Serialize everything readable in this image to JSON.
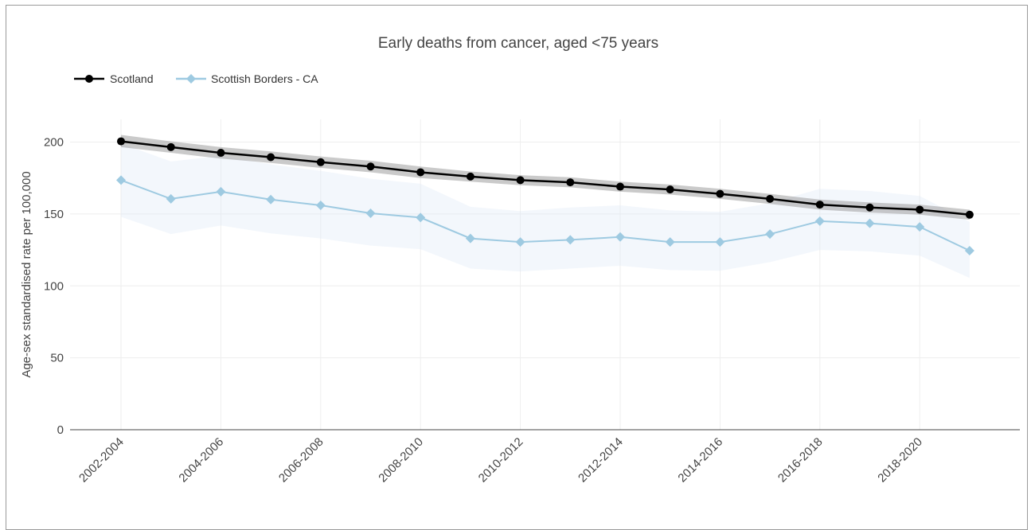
{
  "chart_data": {
    "type": "line",
    "title": "Early deaths from cancer, aged <75 years",
    "xlabel": "",
    "ylabel": "Age-sex standardised rate per 100,000",
    "ylim": [
      0,
      215
    ],
    "yticks": [
      0,
      50,
      100,
      150,
      200
    ],
    "categories": [
      "2002-2004",
      "2003-2005",
      "2004-2006",
      "2005-2007",
      "2006-2008",
      "2007-2009",
      "2008-2010",
      "2009-2011",
      "2010-2012",
      "2011-2013",
      "2012-2014",
      "2013-2015",
      "2014-2016",
      "2015-2017",
      "2016-2018",
      "2017-2019",
      "2018-2020",
      "2019-2021"
    ],
    "tick_labels": [
      "2002-2004",
      "2004-2006",
      "2006-2008",
      "2008-2010",
      "2010-2012",
      "2012-2014",
      "2014-2016",
      "2016-2018",
      "2018-2020"
    ],
    "legend_position": "top-left",
    "grid": true,
    "series": [
      {
        "name": "Scotland",
        "color": "#000000",
        "marker": "circle",
        "band_color": "#9e9e9e",
        "values": [
          200.5,
          196.5,
          192.5,
          189.5,
          186.0,
          183.0,
          179.0,
          176.0,
          173.5,
          172.0,
          169.0,
          167.0,
          164.0,
          160.5,
          156.5,
          154.5,
          153.0,
          149.5
        ],
        "lower": [
          196.5,
          192.5,
          188.5,
          185.5,
          182.0,
          179.0,
          175.0,
          172.5,
          170.0,
          168.5,
          165.5,
          163.5,
          160.5,
          157.0,
          153.0,
          151.0,
          149.5,
          146.0
        ],
        "upper": [
          205.0,
          200.5,
          196.5,
          193.5,
          190.0,
          187.0,
          183.0,
          179.5,
          177.0,
          175.5,
          172.5,
          170.5,
          167.5,
          164.0,
          160.0,
          158.0,
          156.5,
          153.0
        ]
      },
      {
        "name": "Scottish Borders - CA",
        "color": "#9ecae1",
        "marker": "diamond",
        "band_color": "#dce9f5",
        "values": [
          173.5,
          160.5,
          165.5,
          160.0,
          156.0,
          150.5,
          147.5,
          133.0,
          130.5,
          132.0,
          134.0,
          130.5,
          130.5,
          136.0,
          145.0,
          143.5,
          141.0,
          124.5
        ],
        "lower": [
          148.0,
          136.0,
          142.0,
          136.5,
          133.0,
          128.0,
          125.5,
          112.0,
          110.0,
          112.0,
          114.0,
          111.0,
          110.5,
          116.5,
          125.0,
          124.0,
          121.0,
          105.5
        ],
        "upper": [
          199.0,
          186.5,
          190.5,
          184.5,
          180.0,
          174.5,
          171.0,
          155.0,
          152.0,
          154.5,
          156.0,
          152.5,
          151.5,
          157.5,
          167.5,
          166.0,
          162.5,
          144.5
        ]
      }
    ]
  }
}
